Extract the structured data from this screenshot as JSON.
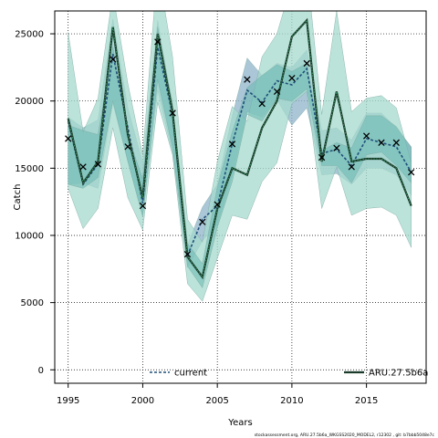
{
  "chart_data": {
    "type": "line",
    "xlabel": "Years",
    "ylabel": "Catch",
    "xlim": [
      1994.1,
      2019.0
    ],
    "ylim": [
      -1000,
      26700
    ],
    "x_ticks": [
      1995,
      2000,
      2005,
      2010,
      2015
    ],
    "y_ticks": [
      0,
      5000,
      10000,
      15000,
      20000,
      25000
    ],
    "x_tick_labels": [
      "1995",
      "2000",
      "2005",
      "2010",
      "2015"
    ],
    "y_tick_labels": [
      "0",
      "5000",
      "10000",
      "15000",
      "20000",
      "25000"
    ],
    "grid": true,
    "legend_position": "bottom",
    "colors": {
      "current_band": "#8db3c9",
      "outer_band": "#a6d9cd",
      "inner_band": "#67b8b0",
      "current_line": "#1f4e79",
      "model_line": "#1a3a2a",
      "points": "#000000"
    },
    "years": [
      1995,
      1996,
      1997,
      1998,
      1999,
      2000,
      2001,
      2002,
      2003,
      2004,
      2005,
      2006,
      2007,
      2008,
      2009,
      2010,
      2011,
      2012,
      2013,
      2014,
      2015,
      2016,
      2017,
      2018
    ],
    "observed": [
      17200,
      15100,
      15300,
      23100,
      16600,
      12200,
      24400,
      19100,
      8600,
      11000,
      12300,
      16800,
      21600,
      19800,
      20700,
      21700,
      22800,
      15800,
      16500,
      15100,
      17400,
      16900,
      16900,
      14700
    ],
    "series": [
      {
        "name": "current",
        "values": [
          18500,
          13800,
          15300,
          23500,
          18000,
          12400,
          24000,
          19000,
          8500,
          11200,
          12200,
          16800,
          20800,
          19900,
          21500,
          21200,
          22400,
          16100,
          16400,
          15200,
          17200,
          16900,
          16600,
          14700
        ],
        "lower": [
          13800,
          13900,
          13500,
          19800,
          15500,
          11400,
          20800,
          16100,
          7600,
          9600,
          10800,
          14500,
          19200,
          18800,
          20100,
          18200,
          19500,
          14500,
          14600,
          13800,
          15000,
          15000,
          14500,
          13000
        ],
        "upper": [
          18800,
          18000,
          18600,
          26100,
          19500,
          15400,
          26000,
          19500,
          9300,
          12100,
          13800,
          18900,
          23200,
          21900,
          22800,
          22500,
          23800,
          17800,
          18000,
          17100,
          19100,
          19100,
          18000,
          16600
        ]
      },
      {
        "name": "ARU.27.5b6a",
        "values": [
          18700,
          13900,
          15500,
          25500,
          17500,
          12800,
          25000,
          19200,
          8400,
          6900,
          12000,
          15000,
          14500,
          18000,
          20000,
          24800,
          26000,
          15500,
          20700,
          15500,
          15700,
          15700,
          15000,
          12200
        ],
        "lower": [
          13500,
          10500,
          12000,
          18000,
          12800,
          10400,
          19900,
          16000,
          6400,
          5100,
          8300,
          11500,
          11200,
          14000,
          15400,
          19800,
          20700,
          12000,
          15100,
          11500,
          12000,
          12100,
          11500,
          9100
        ],
        "upper": [
          25100,
          17700,
          20200,
          28000,
          21300,
          16000,
          30000,
          23300,
          11200,
          9500,
          15500,
          19600,
          18500,
          23300,
          25000,
          28800,
          30000,
          19000,
          26700,
          19200,
          20200,
          20400,
          19500,
          15400
        ],
        "inner_lower": [
          13800,
          13500,
          14300,
          20000,
          15500,
          11400,
          21600,
          16500,
          7700,
          6100,
          10600,
          14000,
          19000,
          18500,
          20200,
          20000,
          20900,
          15200,
          15200,
          13900,
          16000,
          16200,
          15200,
          13900
        ],
        "inner_upper": [
          18200,
          17800,
          17500,
          24000,
          17400,
          14200,
          25500,
          19800,
          9400,
          7900,
          13600,
          17700,
          21000,
          21900,
          22700,
          22200,
          22800,
          16300,
          16900,
          16500,
          18900,
          18900,
          18100,
          16500
        ]
      }
    ]
  },
  "legend": {
    "items": [
      {
        "label": "current"
      },
      {
        "label": "ARU.27.5b6a"
      }
    ]
  },
  "footer": {
    "note": "stockassessment.org, ARU.27.5b6a_WKGSS2020_MODEL2, r12302 , git: b7bbb5048e7c"
  }
}
